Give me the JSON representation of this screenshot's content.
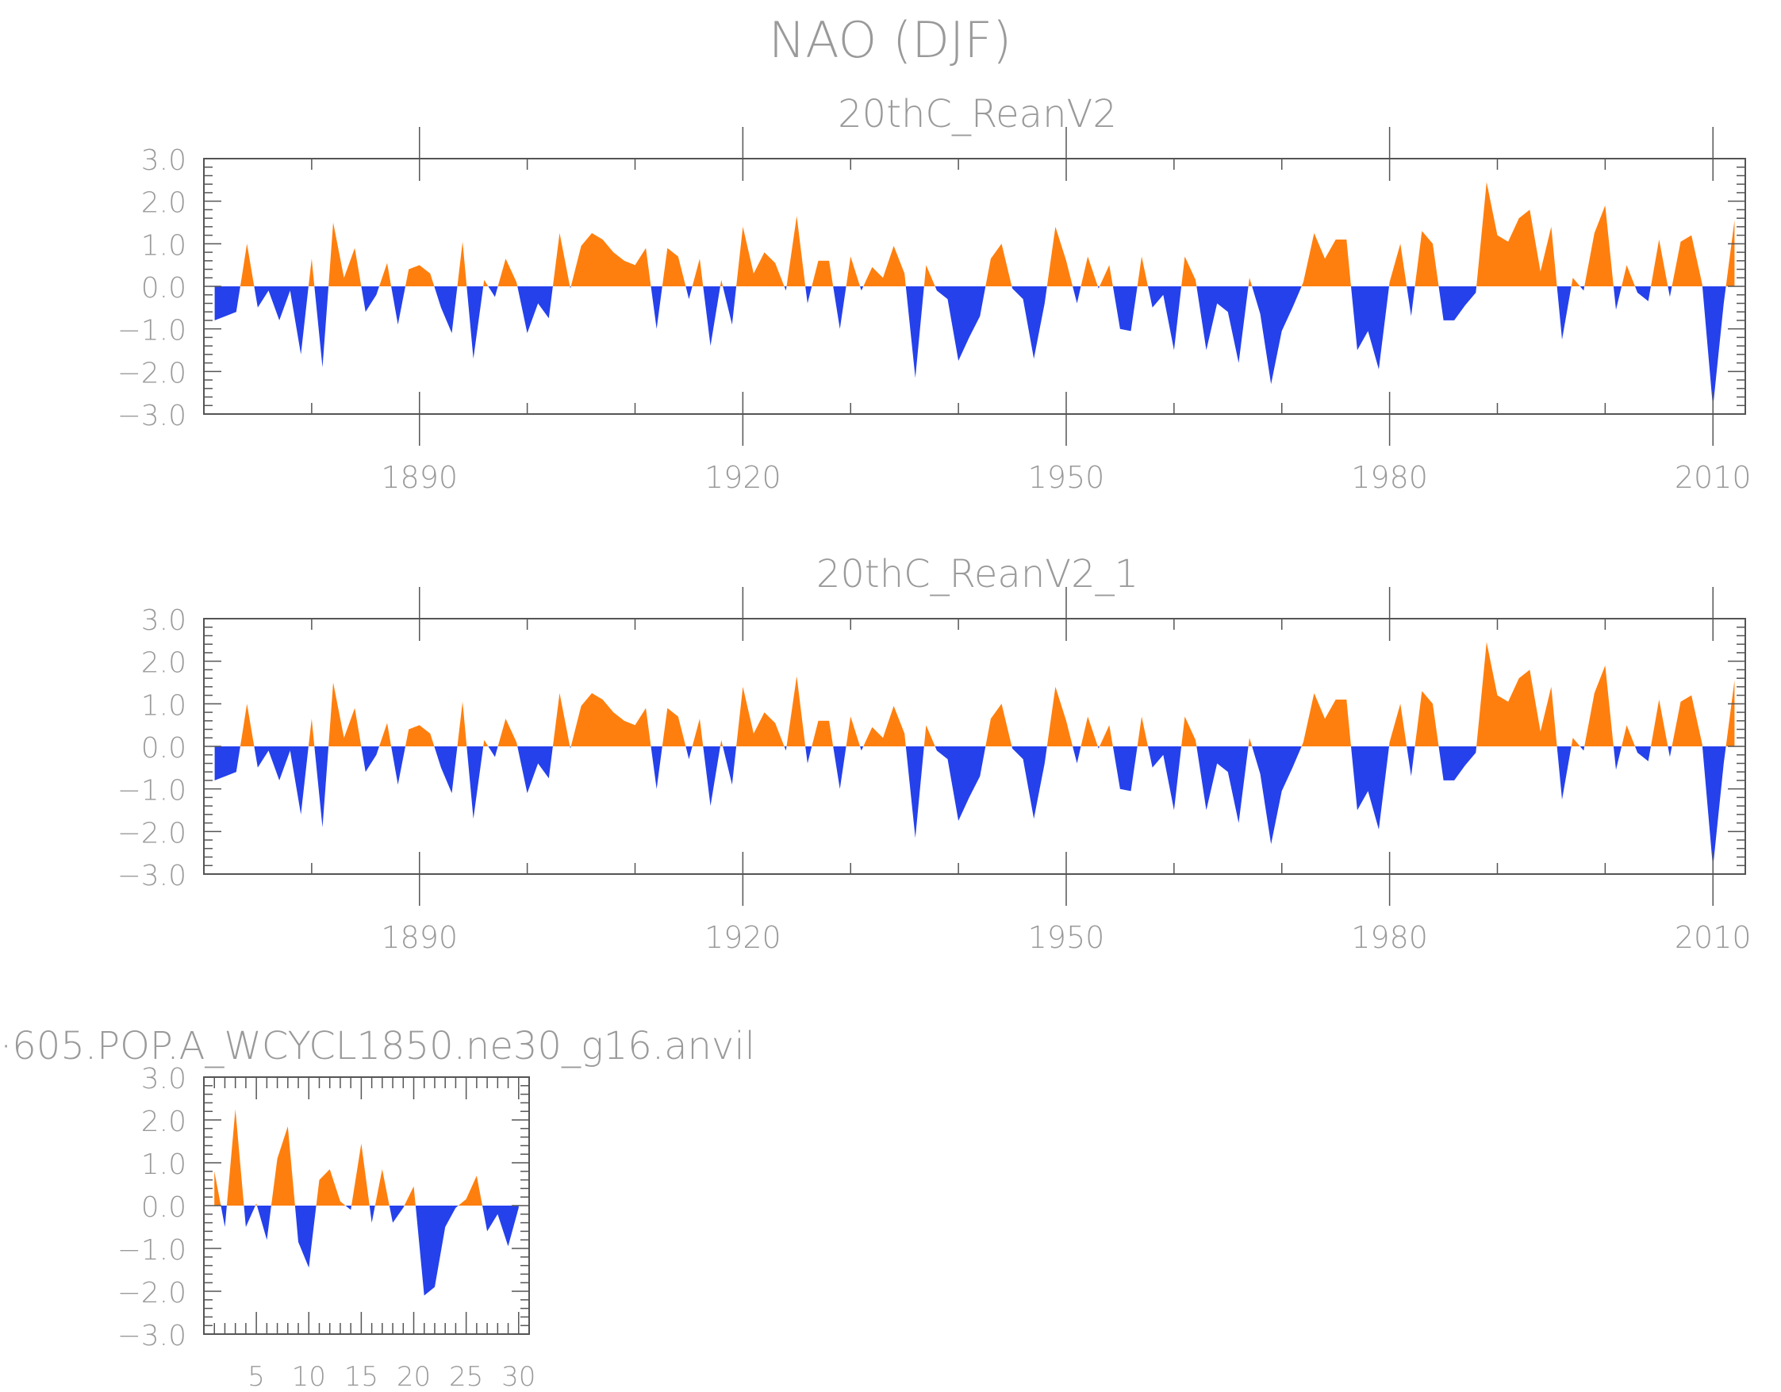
{
  "figure": {
    "title": "NAO (DJF)"
  },
  "colors": {
    "positive": "#ff7f0e",
    "negative": "#2541ec",
    "axis": "#555555",
    "text": "#9a9a9a"
  },
  "chart_data": [
    {
      "type": "area",
      "title": "20thC_ReanV2",
      "ylim": [
        -3.0,
        3.0
      ],
      "yticks": [
        "3.0",
        "2.0",
        "1.0",
        "0.0",
        "-1.0",
        "-2.0",
        "-3.0"
      ],
      "xlim": [
        1870,
        2013
      ],
      "xticks": [
        "1890",
        "1920",
        "1950",
        "1980",
        "2010"
      ],
      "baseline": 0,
      "x": [
        1871,
        1872,
        1873,
        1874,
        1875,
        1876,
        1877,
        1878,
        1879,
        1880,
        1881,
        1882,
        1883,
        1884,
        1885,
        1886,
        1887,
        1888,
        1889,
        1890,
        1891,
        1892,
        1893,
        1894,
        1895,
        1896,
        1897,
        1898,
        1899,
        1900,
        1901,
        1902,
        1903,
        1904,
        1905,
        1906,
        1907,
        1908,
        1909,
        1910,
        1911,
        1912,
        1913,
        1914,
        1915,
        1916,
        1917,
        1918,
        1919,
        1920,
        1921,
        1922,
        1923,
        1924,
        1925,
        1926,
        1927,
        1928,
        1929,
        1930,
        1931,
        1932,
        1933,
        1934,
        1935,
        1936,
        1937,
        1938,
        1939,
        1940,
        1941,
        1942,
        1943,
        1944,
        1945,
        1946,
        1947,
        1948,
        1949,
        1950,
        1951,
        1952,
        1953,
        1954,
        1955,
        1956,
        1957,
        1958,
        1959,
        1960,
        1961,
        1962,
        1963,
        1964,
        1965,
        1966,
        1967,
        1968,
        1969,
        1970,
        1971,
        1972,
        1973,
        1974,
        1975,
        1976,
        1977,
        1978,
        1979,
        1980,
        1981,
        1982,
        1983,
        1984,
        1985,
        1986,
        1987,
        1988,
        1989,
        1990,
        1991,
        1992,
        1993,
        1994,
        1995,
        1996,
        1997,
        1998,
        1999,
        2000,
        2001,
        2002,
        2003,
        2004,
        2005,
        2006,
        2007,
        2008,
        2009,
        2010,
        2011,
        2012
      ],
      "values": [
        -0.8,
        -0.7,
        -0.6,
        1.0,
        -0.5,
        -0.1,
        -0.8,
        -0.1,
        -1.6,
        0.65,
        -1.9,
        1.5,
        0.2,
        0.9,
        -0.6,
        -0.2,
        0.55,
        -0.9,
        0.4,
        0.5,
        0.3,
        -0.5,
        -1.1,
        1.05,
        -1.7,
        0.15,
        -0.25,
        0.65,
        0.1,
        -1.1,
        -0.4,
        -0.75,
        1.25,
        -0.05,
        0.95,
        1.25,
        1.1,
        0.8,
        0.6,
        0.5,
        0.9,
        -1.0,
        0.9,
        0.7,
        -0.3,
        0.65,
        -1.4,
        0.15,
        -0.9,
        1.4,
        0.3,
        0.8,
        0.55,
        -0.1,
        1.65,
        -0.4,
        0.6,
        0.6,
        -1.0,
        0.7,
        -0.1,
        0.45,
        0.2,
        0.95,
        0.3,
        -2.15,
        0.5,
        -0.1,
        -0.3,
        -1.75,
        -1.2,
        -0.7,
        0.65,
        1.0,
        -0.05,
        -0.3,
        -1.7,
        -0.4,
        1.4,
        0.6,
        -0.4,
        0.7,
        -0.05,
        0.5,
        -1.0,
        -1.05,
        0.7,
        -0.5,
        -0.2,
        -1.5,
        0.7,
        0.15,
        -1.5,
        -0.4,
        -0.6,
        -1.8,
        0.2,
        -0.65,
        -2.3,
        -1.05,
        -0.5,
        0.1,
        1.25,
        0.65,
        1.1,
        1.1,
        -1.5,
        -1.05,
        -1.95,
        0.1,
        1.0,
        -0.7,
        1.3,
        1.0,
        -0.8,
        -0.8,
        -0.45,
        -0.15,
        2.45,
        1.2,
        1.05,
        1.6,
        1.8,
        0.35,
        1.4,
        -1.25,
        0.2,
        -0.1,
        1.25,
        1.9,
        -0.55,
        0.5,
        -0.15,
        -0.35,
        1.1,
        -0.25,
        1.05,
        1.2,
        0.05,
        -2.85,
        -0.4,
        1.55
      ]
    },
    {
      "type": "area",
      "title": "20thC_ReanV2_1",
      "ylim": [
        -3.0,
        3.0
      ],
      "yticks": [
        "3.0",
        "2.0",
        "1.0",
        "0.0",
        "-1.0",
        "-2.0",
        "-3.0"
      ],
      "xlim": [
        1870,
        2013
      ],
      "xticks": [
        "1890",
        "1920",
        "1950",
        "1980",
        "2010"
      ],
      "baseline": 0,
      "x": [
        1871,
        1872,
        1873,
        1874,
        1875,
        1876,
        1877,
        1878,
        1879,
        1880,
        1881,
        1882,
        1883,
        1884,
        1885,
        1886,
        1887,
        1888,
        1889,
        1890,
        1891,
        1892,
        1893,
        1894,
        1895,
        1896,
        1897,
        1898,
        1899,
        1900,
        1901,
        1902,
        1903,
        1904,
        1905,
        1906,
        1907,
        1908,
        1909,
        1910,
        1911,
        1912,
        1913,
        1914,
        1915,
        1916,
        1917,
        1918,
        1919,
        1920,
        1921,
        1922,
        1923,
        1924,
        1925,
        1926,
        1927,
        1928,
        1929,
        1930,
        1931,
        1932,
        1933,
        1934,
        1935,
        1936,
        1937,
        1938,
        1939,
        1940,
        1941,
        1942,
        1943,
        1944,
        1945,
        1946,
        1947,
        1948,
        1949,
        1950,
        1951,
        1952,
        1953,
        1954,
        1955,
        1956,
        1957,
        1958,
        1959,
        1960,
        1961,
        1962,
        1963,
        1964,
        1965,
        1966,
        1967,
        1968,
        1969,
        1970,
        1971,
        1972,
        1973,
        1974,
        1975,
        1976,
        1977,
        1978,
        1979,
        1980,
        1981,
        1982,
        1983,
        1984,
        1985,
        1986,
        1987,
        1988,
        1989,
        1990,
        1991,
        1992,
        1993,
        1994,
        1995,
        1996,
        1997,
        1998,
        1999,
        2000,
        2001,
        2002,
        2003,
        2004,
        2005,
        2006,
        2007,
        2008,
        2009,
        2010,
        2011,
        2012
      ],
      "values": [
        -0.8,
        -0.7,
        -0.6,
        1.0,
        -0.5,
        -0.1,
        -0.8,
        -0.1,
        -1.6,
        0.65,
        -1.9,
        1.5,
        0.2,
        0.9,
        -0.6,
        -0.2,
        0.55,
        -0.9,
        0.4,
        0.5,
        0.3,
        -0.5,
        -1.1,
        1.05,
        -1.7,
        0.15,
        -0.25,
        0.65,
        0.1,
        -1.1,
        -0.4,
        -0.75,
        1.25,
        -0.05,
        0.95,
        1.25,
        1.1,
        0.8,
        0.6,
        0.5,
        0.9,
        -1.0,
        0.9,
        0.7,
        -0.3,
        0.65,
        -1.4,
        0.15,
        -0.9,
        1.4,
        0.3,
        0.8,
        0.55,
        -0.1,
        1.65,
        -0.4,
        0.6,
        0.6,
        -1.0,
        0.7,
        -0.1,
        0.45,
        0.2,
        0.95,
        0.3,
        -2.15,
        0.5,
        -0.1,
        -0.3,
        -1.75,
        -1.2,
        -0.7,
        0.65,
        1.0,
        -0.05,
        -0.3,
        -1.7,
        -0.4,
        1.4,
        0.6,
        -0.4,
        0.7,
        -0.05,
        0.5,
        -1.0,
        -1.05,
        0.7,
        -0.5,
        -0.2,
        -1.5,
        0.7,
        0.15,
        -1.5,
        -0.4,
        -0.6,
        -1.8,
        0.2,
        -0.65,
        -2.3,
        -1.05,
        -0.5,
        0.1,
        1.25,
        0.65,
        1.1,
        1.1,
        -1.5,
        -1.05,
        -1.95,
        0.1,
        1.0,
        -0.7,
        1.3,
        1.0,
        -0.8,
        -0.8,
        -0.45,
        -0.15,
        2.45,
        1.2,
        1.05,
        1.6,
        1.8,
        0.35,
        1.4,
        -1.25,
        0.2,
        -0.1,
        1.25,
        1.9,
        -0.55,
        0.5,
        -0.15,
        -0.35,
        1.1,
        -0.25,
        1.05,
        1.2,
        0.05,
        -2.85,
        -0.4,
        1.55
      ]
    },
    {
      "type": "area",
      "title": "·605.POP.A_WCYCL1850.ne30_g16.anvil",
      "ylim": [
        -3.0,
        3.0
      ],
      "yticks": [
        "3.0",
        "2.0",
        "1.0",
        "0.0",
        "-1.0",
        "-2.0",
        "-3.0"
      ],
      "xlim": [
        0,
        31
      ],
      "xticks": [
        "5",
        "10",
        "15",
        "20",
        "25",
        "30"
      ],
      "baseline": 0,
      "x": [
        1,
        2,
        3,
        4,
        5,
        6,
        7,
        8,
        9,
        10,
        11,
        12,
        13,
        14,
        15,
        16,
        17,
        18,
        19,
        20,
        21,
        22,
        23,
        24,
        25,
        26,
        27,
        28,
        29,
        30
      ],
      "values": [
        0.8,
        -0.5,
        2.25,
        -0.5,
        0.05,
        -0.8,
        1.1,
        1.85,
        -0.85,
        -1.45,
        0.6,
        0.85,
        0.1,
        -0.1,
        1.45,
        -0.4,
        0.85,
        -0.4,
        -0.05,
        0.45,
        -2.1,
        -1.9,
        -0.5,
        -0.05,
        0.15,
        0.7,
        -0.6,
        -0.2,
        -0.95,
        -0.05
      ]
    }
  ]
}
